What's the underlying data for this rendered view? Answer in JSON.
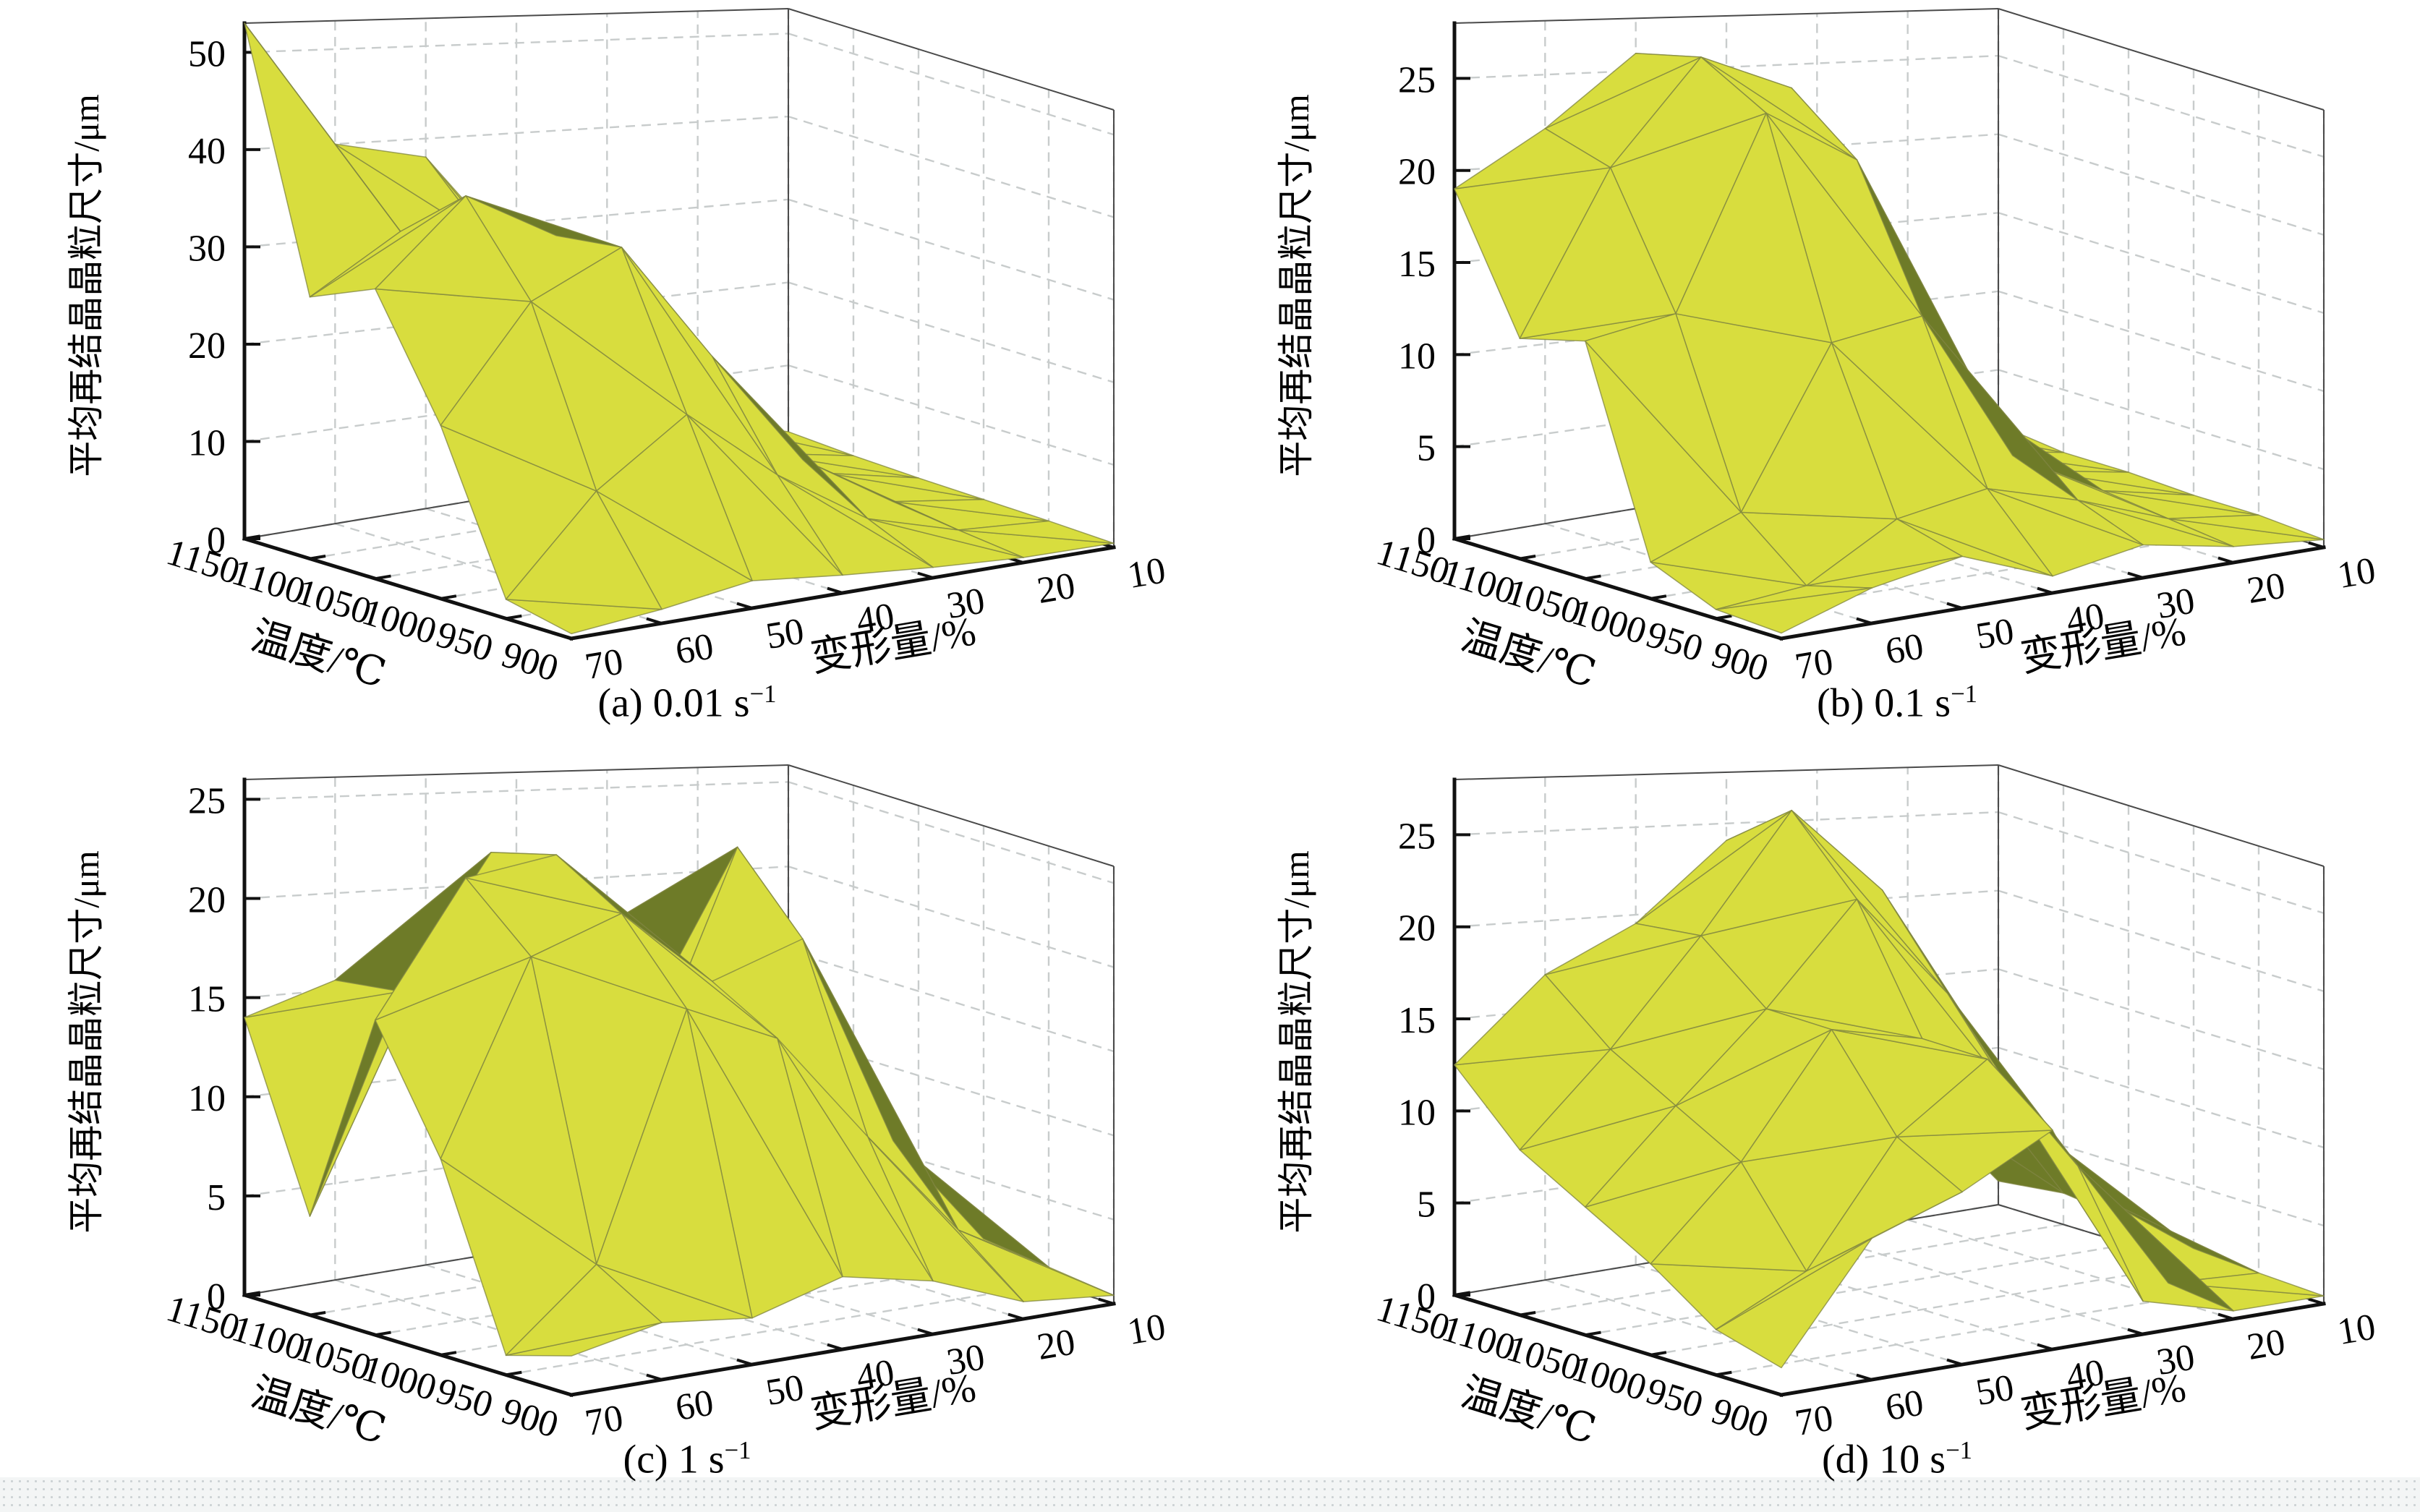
{
  "axes": {
    "z_label": "平均再结晶晶粒尺寸/μm",
    "x_label": "温度/℃",
    "y_label": "变形量/%"
  },
  "colors": {
    "surface_top": "#d8dd3e",
    "surface_under": "#6e7b28",
    "mesh_line": "#7f8440",
    "grid_line": "#c8cccc",
    "axis_line": "#111111",
    "text": "#000000"
  },
  "chart_data": [
    {
      "type": "surface",
      "panel": "a",
      "caption_prefix": "(a) 0.01 s",
      "caption_sup": "−1",
      "strain_rate_s1": 0.01,
      "temperature_C": [
        1150,
        1100,
        1050,
        1000,
        950,
        900
      ],
      "deformation_pct": [
        70,
        60,
        50,
        40,
        30,
        20,
        10
      ],
      "grain_size_um": [
        [
          53,
          40,
          38,
          26,
          13,
          5,
          2
        ],
        [
          27,
          33,
          31,
          19,
          9,
          3.5,
          1.5
        ],
        [
          30,
          39,
          34,
          21,
          10,
          3.5,
          1.2
        ],
        [
          18,
          30,
          35,
          22,
          9,
          2.5,
          1
        ],
        [
          2,
          12,
          19,
          11,
          4.5,
          1.5,
          0.8
        ],
        [
          0.5,
          1.5,
          3,
          2,
          1.2,
          0.6,
          0.5
        ]
      ],
      "zlim": [
        0,
        53
      ],
      "zticks": [
        0,
        10,
        20,
        30,
        40,
        50
      ]
    },
    {
      "type": "surface",
      "panel": "b",
      "caption_prefix": "(b) 0.1 s",
      "caption_sup": "−1",
      "strain_rate_s1": 0.1,
      "temperature_C": [
        1150,
        1100,
        1050,
        1000,
        950,
        900
      ],
      "deformation_pct": [
        70,
        60,
        50,
        40,
        30,
        20,
        10
      ],
      "grain_size_um": [
        [
          19,
          22,
          26,
          24,
          14,
          2.5,
          1.5
        ],
        [
          12,
          21,
          27,
          25,
          10,
          2,
          1
        ],
        [
          13,
          14,
          25,
          22,
          8,
          2,
          1
        ],
        [
          2,
          4,
          13,
          14,
          5,
          2,
          0.8
        ],
        [
          0.5,
          1,
          4,
          5,
          3.5,
          1.5,
          0.8
        ],
        [
          0.3,
          2,
          3,
          1,
          2,
          1,
          0.5
        ]
      ],
      "zlim": [
        0,
        28
      ],
      "zticks": [
        0,
        5,
        10,
        15,
        20,
        25
      ]
    },
    {
      "type": "surface",
      "panel": "c",
      "caption_prefix": "(c) 1 s",
      "caption_sup": "−1",
      "strain_rate_s1": 1,
      "temperature_C": [
        1150,
        1100,
        1050,
        1000,
        950,
        900
      ],
      "deformation_pct": [
        70,
        60,
        50,
        40,
        30,
        20,
        10
      ],
      "grain_size_um": [
        [
          14,
          15.5,
          14,
          13,
          12,
          5,
          1
        ],
        [
          5,
          16,
          23,
          18,
          16,
          8,
          1.5
        ],
        [
          16,
          23,
          24,
          12,
          24,
          10,
          2
        ],
        [
          10,
          20,
          22,
          18,
          20,
          8,
          1.5
        ],
        [
          1,
          5,
          18,
          16,
          10,
          4,
          1
        ],
        [
          2,
          3,
          2.5,
          4,
          3,
          1,
          0.5
        ]
      ],
      "zlim": [
        0,
        26
      ],
      "zticks": [
        0,
        5,
        10,
        15,
        20,
        25
      ]
    },
    {
      "type": "surface",
      "panel": "d",
      "caption_prefix": "(d) 10 s",
      "caption_sup": "−1",
      "strain_rate_s1": 10,
      "temperature_C": [
        1150,
        1100,
        1050,
        1000,
        950,
        900
      ],
      "deformation_pct": [
        70,
        60,
        50,
        40,
        30,
        20,
        10
      ],
      "grain_size_um": [
        [
          12.5,
          17,
          19.5,
          24,
          20,
          8,
          1.5
        ],
        [
          9,
          14,
          20,
          27,
          22,
          10,
          2
        ],
        [
          7,
          12,
          17,
          23,
          17,
          8,
          1.5
        ],
        [
          5,
          10,
          17,
          16,
          12,
          5,
          1
        ],
        [
          2.5,
          5,
          12,
          16,
          9,
          1,
          0.7
        ],
        [
          1.5,
          8,
          10,
          13,
          2,
          0.5,
          0.5
        ]
      ],
      "zlim": [
        0,
        28
      ],
      "zticks": [
        0,
        5,
        10,
        15,
        20,
        25
      ]
    }
  ]
}
